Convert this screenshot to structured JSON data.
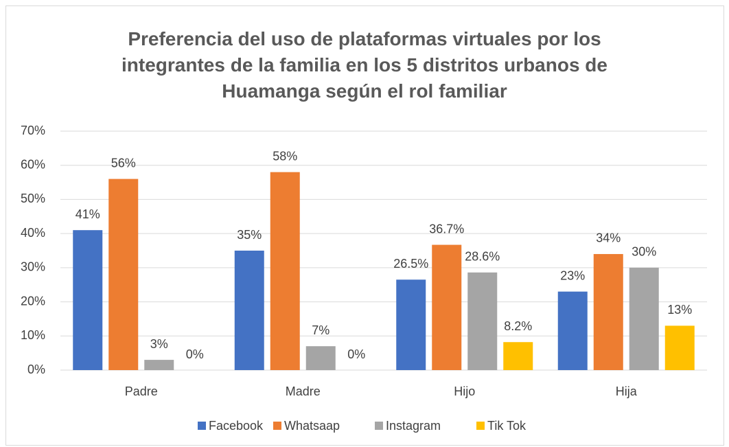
{
  "chart_data": {
    "type": "bar",
    "title": "Preferencia del uso de  plataformas virtuales por los integrantes de la familia en los 5 distritos urbanos de Huamanga según el rol familiar",
    "categories": [
      "Padre",
      "Madre",
      "Hijo",
      "Hija"
    ],
    "series": [
      {
        "name": "Facebook",
        "color": "#4472c4",
        "values": [
          41,
          35,
          26.5,
          23
        ],
        "value_labels": [
          "41%",
          "35%",
          "26.5%",
          "23%"
        ]
      },
      {
        "name": "Whatsaap",
        "color": "#ed7d31",
        "values": [
          56,
          58,
          36.7,
          34
        ],
        "value_labels": [
          "56%",
          "58%",
          "36.7%",
          "34%"
        ]
      },
      {
        "name": "Instagram",
        "color": "#a5a5a5",
        "values": [
          3,
          7,
          28.6,
          30
        ],
        "value_labels": [
          "3%",
          "7%",
          "28.6%",
          "30%"
        ]
      },
      {
        "name": "Tik Tok",
        "color": "#ffc000",
        "values": [
          0,
          0,
          8.2,
          13
        ],
        "value_labels": [
          "0%",
          "0%",
          "8.2%",
          "13%"
        ]
      }
    ],
    "ylim": [
      0,
      70
    ],
    "yticks": [
      {
        "value": 0,
        "label": "0%"
      },
      {
        "value": 10,
        "label": "10%"
      },
      {
        "value": 20,
        "label": "20%"
      },
      {
        "value": 30,
        "label": "30%"
      },
      {
        "value": 40,
        "label": "40%"
      },
      {
        "value": 50,
        "label": "50%"
      },
      {
        "value": 60,
        "label": "60%"
      },
      {
        "value": 70,
        "label": "70%"
      }
    ],
    "grid": true,
    "legend": "bottom"
  }
}
